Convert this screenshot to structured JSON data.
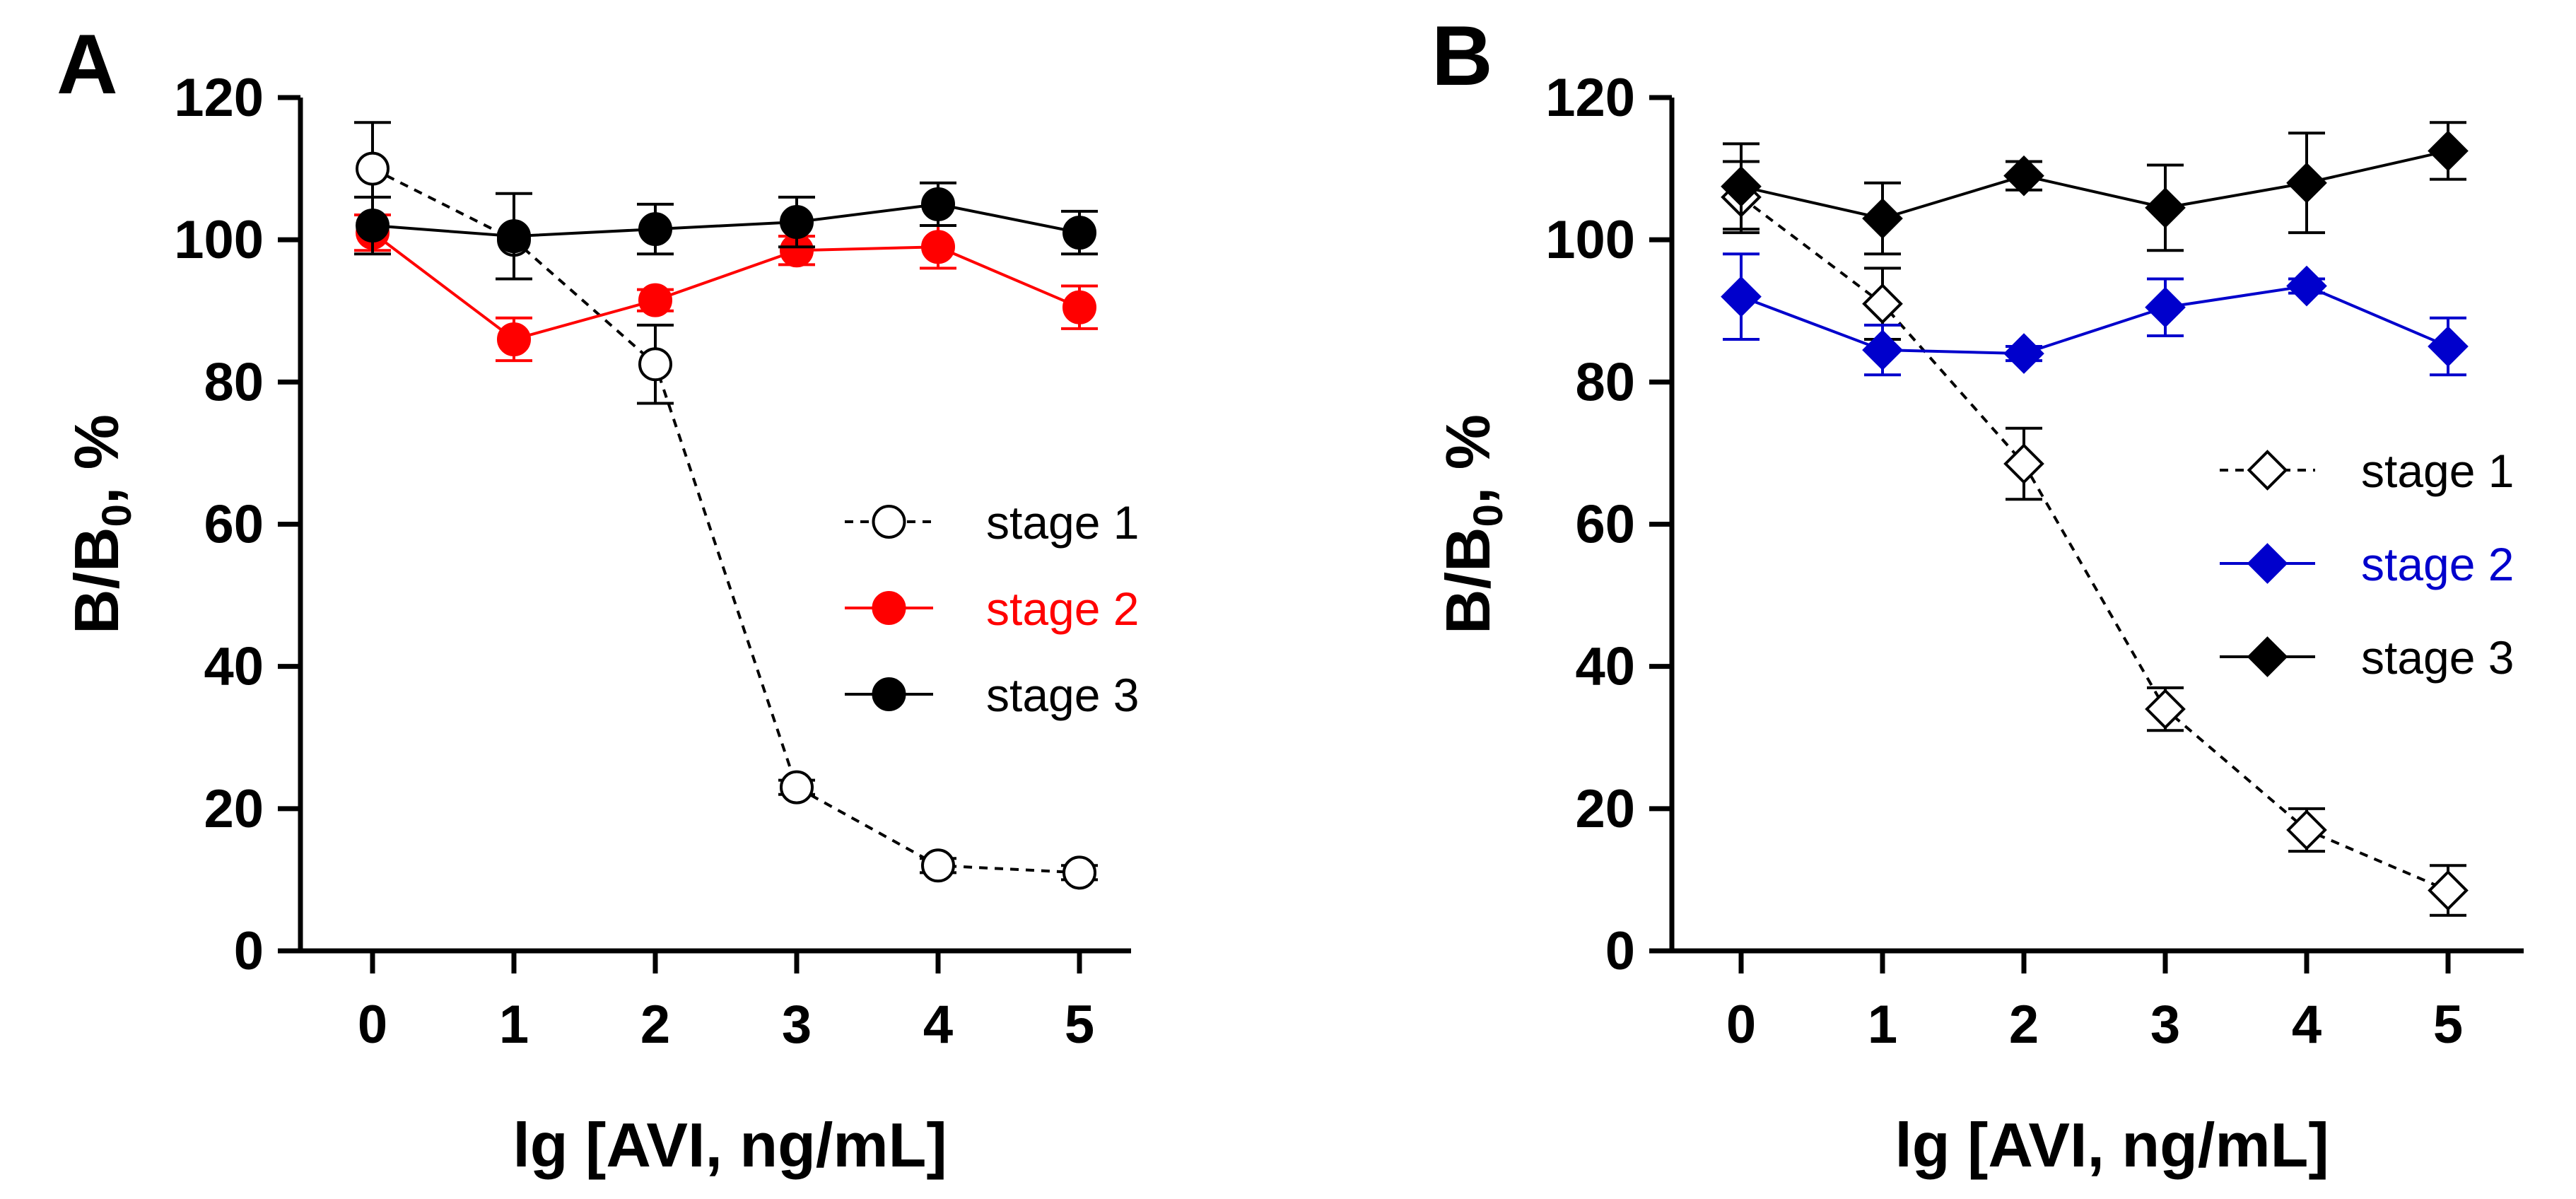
{
  "chart_data": [
    {
      "type": "line",
      "panel_label": "A",
      "xlabel": "lg [AVI, ng/mL]",
      "ylabel": "B/B",
      "ylabel_sub": "0",
      "ylabel_suffix": ",  %",
      "xlim": [
        -0.45,
        5.45
      ],
      "ylim": [
        0,
        120
      ],
      "xticks": [
        0,
        1,
        2,
        3,
        4,
        5
      ],
      "yticks": [
        0,
        20,
        40,
        60,
        80,
        100,
        120
      ],
      "grid": false,
      "legend_position": "center-right",
      "series": [
        {
          "name": "stage 1",
          "color": "#000000",
          "marker": "circle-open",
          "dashed": true,
          "x": [
            0,
            1,
            2,
            3,
            4,
            5
          ],
          "values": [
            110,
            100,
            82.5,
            23,
            12,
            11
          ],
          "errors": [
            6.5,
            0,
            5.5,
            1,
            1,
            1
          ]
        },
        {
          "name": "stage 2",
          "color": "#ff0000",
          "marker": "circle-filled",
          "dashed": false,
          "x": [
            0,
            1,
            2,
            3,
            4,
            5
          ],
          "values": [
            101,
            86,
            91.5,
            98.5,
            99,
            90.5
          ],
          "errors": [
            2.5,
            3,
            1.5,
            2,
            3,
            3
          ]
        },
        {
          "name": "stage 3",
          "color": "#000000",
          "marker": "circle-filled",
          "dashed": false,
          "x": [
            0,
            1,
            2,
            3,
            4,
            5
          ],
          "values": [
            102,
            100.5,
            101.5,
            102.5,
            105,
            101
          ],
          "errors": [
            4,
            6,
            3.5,
            3.5,
            3,
            3
          ]
        }
      ]
    },
    {
      "type": "line",
      "panel_label": "B",
      "xlabel": "lg [AVI, ng/mL]",
      "ylabel": "B/B",
      "ylabel_sub": "0",
      "ylabel_suffix": ",  %",
      "xlim": [
        -0.45,
        5.45
      ],
      "ylim": [
        0,
        120
      ],
      "xticks": [
        0,
        1,
        2,
        3,
        4,
        5
      ],
      "yticks": [
        0,
        20,
        40,
        60,
        80,
        100,
        120
      ],
      "grid": false,
      "legend_position": "center-right",
      "series": [
        {
          "name": "stage 1",
          "color": "#000000",
          "marker": "diamond-open",
          "dashed": true,
          "x": [
            0,
            1,
            2,
            3,
            4,
            5
          ],
          "values": [
            106,
            91,
            68.5,
            34,
            17,
            8.5
          ],
          "errors": [
            5,
            5,
            5,
            3,
            3,
            3.5
          ]
        },
        {
          "name": "stage 2",
          "color": "#0000cc",
          "marker": "diamond-filled",
          "dashed": false,
          "x": [
            0,
            1,
            2,
            3,
            4,
            5
          ],
          "values": [
            92,
            84.5,
            84,
            90.5,
            93.5,
            85
          ],
          "errors": [
            6,
            3.5,
            1,
            4,
            1,
            4
          ]
        },
        {
          "name": "stage 3",
          "color": "#000000",
          "marker": "diamond-filled",
          "dashed": false,
          "x": [
            0,
            1,
            2,
            3,
            4,
            5
          ],
          "values": [
            107.5,
            103,
            109,
            104.5,
            108,
            112.5
          ],
          "errors": [
            6,
            5,
            2,
            6,
            7,
            4
          ]
        }
      ]
    }
  ]
}
